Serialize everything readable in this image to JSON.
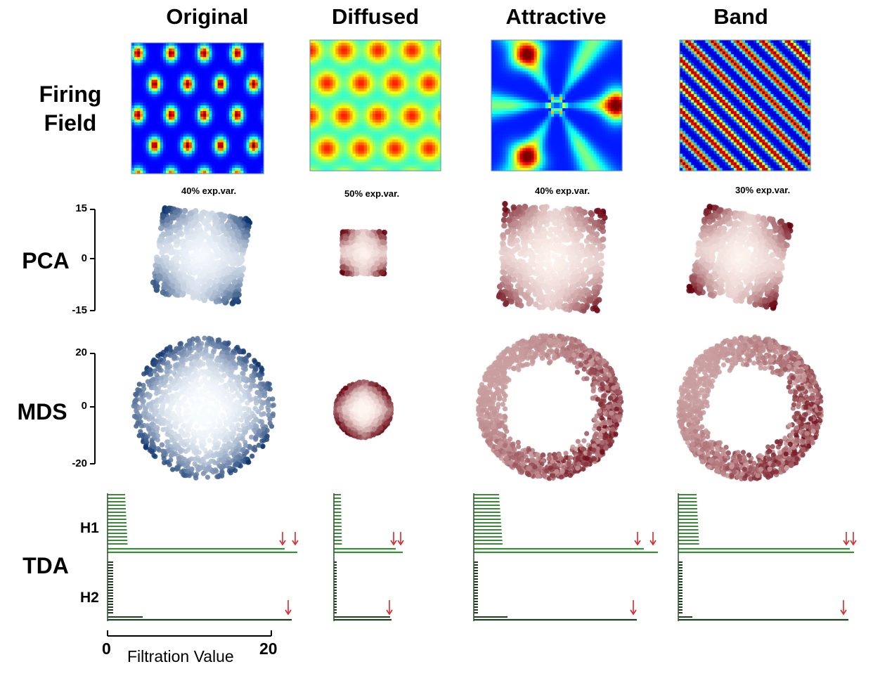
{
  "columns": {
    "original": "Original",
    "diffused": "Diffused",
    "attractive": "Attractive",
    "band": "Band"
  },
  "rows": {
    "firing_field_line1": "Firing",
    "firing_field_line2": "Field",
    "pca": "PCA",
    "mds": "MDS",
    "tda": "TDA",
    "h1": "H1",
    "h2": "H2"
  },
  "explained_variance": {
    "original": "40% exp.var.",
    "diffused": "50% exp.var.",
    "attractive": "40% exp.var.",
    "band": "30% exp.var."
  },
  "pca_axis": {
    "top": "15",
    "mid": "0",
    "bottom": "-15"
  },
  "mds_axis": {
    "top": "20",
    "mid": "0",
    "bottom": "-20"
  },
  "filtration_axis": {
    "min": "0",
    "max": "20",
    "title": "Filtration Value"
  },
  "colors": {
    "blue_colormap_dark": "#08306b",
    "blue_colormap_light": "#f7fbff",
    "red_colormap_dark": "#67000d",
    "red_colormap_light": "#fff5f0",
    "barcode_h1": "#3a8a3a",
    "barcode_h2": "#1f3f1f",
    "arrow": "#d62728"
  }
}
